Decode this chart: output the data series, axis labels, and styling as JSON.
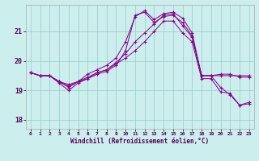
{
  "xlabel": "Windchill (Refroidissement éolien,°C)",
  "ylim": [
    17.7,
    21.9
  ],
  "yticks": [
    18,
    19,
    20,
    21
  ],
  "background_color": "#cceeed",
  "line_color": "#880088",
  "grid_color": "#99cccc",
  "line1": [
    19.6,
    19.5,
    19.5,
    19.3,
    19.1,
    19.3,
    19.4,
    19.55,
    19.65,
    19.85,
    20.35,
    21.55,
    21.65,
    21.3,
    21.5,
    21.55,
    21.3,
    20.85,
    19.5,
    19.5,
    19.5,
    19.5,
    19.5,
    19.5
  ],
  "line2": [
    19.6,
    19.5,
    19.5,
    19.25,
    19.0,
    19.25,
    19.4,
    19.6,
    19.7,
    19.95,
    20.25,
    20.65,
    20.95,
    21.25,
    21.55,
    21.6,
    21.2,
    20.8,
    19.5,
    19.5,
    19.1,
    18.85,
    18.5,
    18.55
  ],
  "line3": [
    19.6,
    19.5,
    19.5,
    19.3,
    19.2,
    19.3,
    19.55,
    19.7,
    19.85,
    20.1,
    20.65,
    21.5,
    21.7,
    21.4,
    21.6,
    21.65,
    21.45,
    20.95,
    19.5,
    19.5,
    19.55,
    19.55,
    19.45,
    19.45
  ],
  "line4": [
    19.6,
    19.5,
    19.5,
    19.3,
    19.15,
    19.3,
    19.45,
    19.6,
    19.7,
    19.9,
    20.1,
    20.35,
    20.65,
    21.0,
    21.35,
    21.35,
    20.95,
    20.65,
    19.4,
    19.4,
    18.95,
    18.9,
    18.5,
    18.6
  ]
}
